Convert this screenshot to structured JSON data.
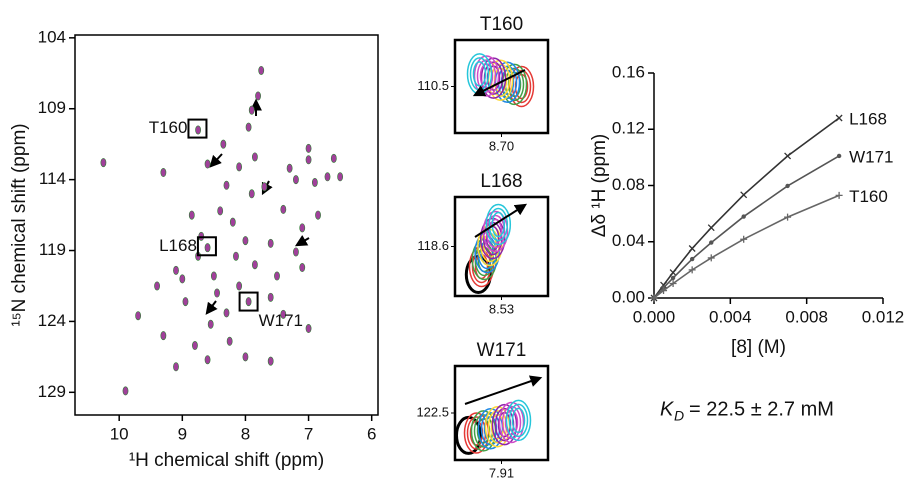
{
  "chart_data": [
    {
      "type": "scatter",
      "xlabel": "¹H chemical shift (ppm)",
      "ylabel": "¹⁵N chemical shift (ppm)",
      "xlim": [
        10.7,
        5.9
      ],
      "ylim": [
        103.8,
        130.6
      ],
      "x_inverted": true,
      "y_inverted": true,
      "xticks": [
        10,
        9,
        8,
        7,
        6
      ],
      "yticks": [
        104,
        109,
        114,
        119,
        124,
        129
      ],
      "color": "#a0409a",
      "x": [
        9.9,
        10.25,
        9.3,
        9.1,
        9.0,
        8.85,
        8.75,
        8.6,
        8.7,
        8.6,
        8.5,
        8.4,
        8.3,
        8.2,
        8.15,
        8.1,
        8.0,
        7.95,
        7.9,
        7.85,
        7.8,
        7.75,
        7.7,
        7.6,
        7.5,
        7.4,
        7.3,
        7.2,
        7.1,
        7.0,
        6.85,
        6.7,
        6.6,
        6.5,
        7.0,
        8.45,
        8.3,
        8.55,
        8.25,
        8.0,
        7.6,
        7.0,
        9.4,
        9.3,
        9.1,
        8.8,
        7.95,
        7.9,
        7.6,
        7.4,
        8.1,
        8.75,
        8.95,
        8.35,
        7.85,
        7.2,
        6.9,
        7.1,
        8.6,
        9.7
      ],
      "y": [
        128.9,
        112.8,
        113.5,
        120.4,
        121.0,
        116.5,
        110.5,
        112.9,
        118.0,
        118.8,
        120.8,
        116.2,
        114.4,
        117.0,
        119.4,
        121.5,
        118.3,
        122.6,
        115.0,
        120.0,
        108.1,
        106.3,
        114.5,
        118.5,
        120.8,
        116.1,
        113.2,
        119.1,
        120.2,
        111.8,
        116.5,
        113.8,
        112.5,
        113.8,
        112.6,
        122.0,
        123.4,
        124.2,
        125.4,
        126.5,
        126.8,
        124.5,
        121.5,
        125.0,
        127.2,
        125.7,
        110.3,
        109.1,
        122.3,
        123.5,
        113.1,
        119.4,
        122.6,
        111.5,
        112.4,
        114.0,
        114.2,
        117.4,
        126.7,
        123.6
      ],
      "annotations": [
        {
          "text": "T160",
          "x": 8.76,
          "y": 110.4
        },
        {
          "text": "L168",
          "x": 8.61,
          "y": 118.7
        },
        {
          "text": "W171",
          "x": 7.95,
          "y": 122.6
        }
      ]
    },
    {
      "type": "contour",
      "title": "T160",
      "xticks": [
        {
          "value": 8.7,
          "label": "8.70"
        }
      ],
      "yticks": [
        110.5
      ]
    },
    {
      "type": "contour",
      "title": "L168",
      "xticks": [
        8.53
      ],
      "yticks": [
        118.6
      ]
    },
    {
      "type": "contour",
      "title": "W171",
      "xticks": [
        7.91
      ],
      "yticks": [
        122.5
      ]
    },
    {
      "type": "line",
      "xlabel": "[8] (M)",
      "ylabel": "Δδ ¹H (ppm)",
      "xlim": [
        0,
        0.012
      ],
      "ylim": [
        0,
        0.16
      ],
      "xticks": [
        {
          "value": 0,
          "label": "0.000"
        },
        0.004,
        0.008,
        0.012
      ],
      "yticks": [
        {
          "value": 0,
          "label": "0.00"
        },
        0.04,
        0.08,
        0.12,
        0.16
      ],
      "x": [
        0,
        0.0005,
        0.001,
        0.002,
        0.003,
        0.0047,
        0.007,
        0.0097
      ],
      "series": [
        {
          "name": "L168",
          "color": "#333333",
          "marker": "x",
          "values": [
            0,
            0.0092,
            0.0181,
            0.0352,
            0.05,
            0.0734,
            0.101,
            0.128
          ]
        },
        {
          "name": "W171",
          "color": "#555555",
          "marker": "dot",
          "values": [
            0,
            0.0073,
            0.0143,
            0.0277,
            0.0394,
            0.0579,
            0.0797,
            0.101
          ]
        },
        {
          "name": "T160",
          "color": "#666666",
          "marker": "plus",
          "values": [
            0,
            0.0053,
            0.0103,
            0.02,
            0.0285,
            0.0418,
            0.0575,
            0.073
          ]
        }
      ],
      "kd_symbol": "K",
      "kd_subscript": "D",
      "kd_text": "= 22.5 ± 2.7 mM"
    }
  ]
}
